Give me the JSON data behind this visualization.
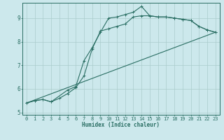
{
  "xlabel": "Humidex (Indice chaleur)",
  "ylabel": "",
  "bg_color": "#cce8ec",
  "grid_color": "#aacccc",
  "line_color": "#2a6e63",
  "xlim": [
    -0.5,
    23.5
  ],
  "ylim": [
    4.9,
    9.65
  ],
  "yticks": [
    5,
    6,
    7,
    8,
    9
  ],
  "xticks": [
    0,
    1,
    2,
    3,
    4,
    5,
    6,
    7,
    8,
    9,
    10,
    11,
    12,
    13,
    14,
    15,
    16,
    17,
    18,
    19,
    20,
    21,
    22,
    23
  ],
  "line1_x": [
    0,
    1,
    2,
    3,
    4,
    5,
    6,
    7,
    8,
    9,
    10,
    11,
    12,
    13,
    14,
    15,
    16,
    17,
    18,
    19,
    20,
    21,
    22,
    23
  ],
  "line1_y": [
    5.4,
    5.5,
    5.55,
    5.45,
    5.6,
    5.8,
    6.05,
    6.55,
    7.7,
    8.45,
    8.55,
    8.65,
    8.75,
    9.05,
    9.1,
    9.1,
    9.05,
    9.05,
    9.0,
    8.95,
    8.9,
    8.65,
    8.5,
    8.4
  ],
  "line2_x": [
    0,
    1,
    2,
    3,
    5,
    6,
    7,
    8,
    9,
    10,
    11,
    12,
    13,
    14,
    15,
    16,
    17,
    18,
    19,
    20,
    21,
    22,
    23
  ],
  "line2_y": [
    5.4,
    5.5,
    5.55,
    5.45,
    5.95,
    6.1,
    7.2,
    7.75,
    8.4,
    9.0,
    9.05,
    9.15,
    9.25,
    9.5,
    9.1,
    9.05,
    9.05,
    9.0,
    8.95,
    8.9,
    8.65,
    8.5,
    8.4
  ],
  "line3_x": [
    0,
    23
  ],
  "line3_y": [
    5.4,
    8.4
  ]
}
